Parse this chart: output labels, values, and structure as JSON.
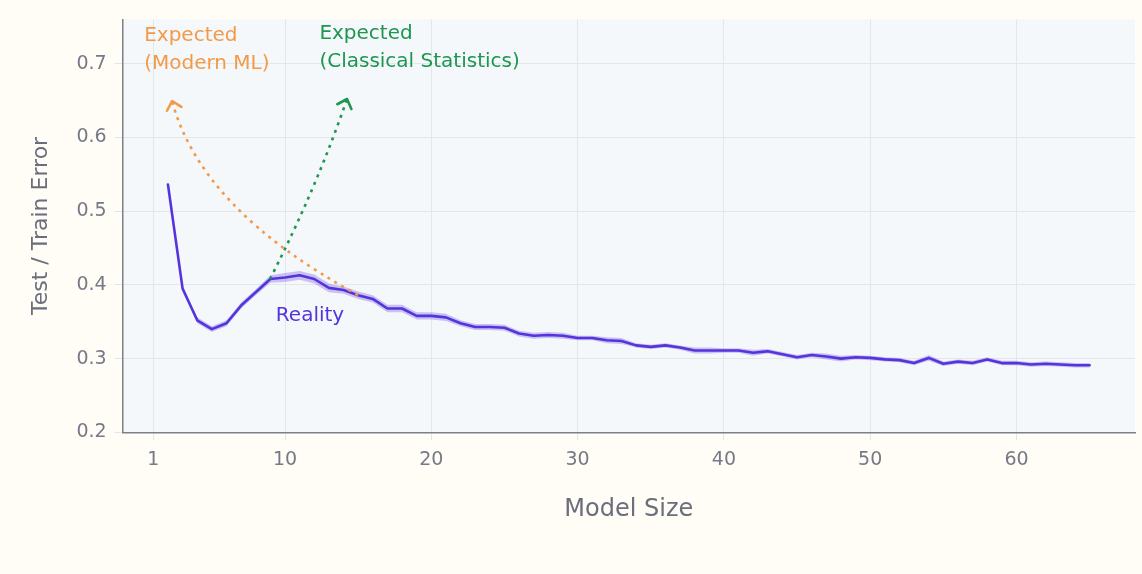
{
  "chart_data": {
    "type": "line",
    "xlabel": "Model Size",
    "ylabel": "Test / Train Error",
    "xlim": [
      -1.1,
      68.1
    ],
    "xticks": [
      1,
      10,
      20,
      30,
      40,
      50,
      60
    ],
    "ylim": [
      0.2,
      0.76
    ],
    "yticks": [
      0.2,
      0.3,
      0.4,
      0.5,
      0.6,
      0.7
    ],
    "grid": true,
    "legend": false,
    "marker": "none",
    "annotations": [
      "Expected\n(Modern ML)",
      "Expected\n(Classical Statistics)"
    ],
    "series": [
      {
        "name": "Reality",
        "color": "#5533dd",
        "line_style": "solid",
        "x": [
          2,
          3,
          4,
          5,
          6,
          7,
          8,
          9,
          10,
          11,
          12,
          13,
          14,
          15,
          16,
          17,
          18,
          19,
          20,
          21,
          22,
          23,
          24,
          25,
          26,
          27,
          28,
          29,
          30,
          31,
          32,
          33,
          34,
          35,
          36,
          37,
          38,
          39,
          40,
          41,
          42,
          43,
          44,
          45,
          46,
          47,
          48,
          49,
          50,
          51,
          52,
          53,
          54,
          55,
          56,
          57,
          58,
          59,
          60,
          61,
          62,
          63,
          64,
          65
        ],
        "values": [
          0.536,
          0.395,
          0.352,
          0.34,
          0.348,
          0.372,
          0.39,
          0.408,
          0.41,
          0.413,
          0.408,
          0.396,
          0.393,
          0.386,
          0.381,
          0.368,
          0.368,
          0.358,
          0.358,
          0.356,
          0.348,
          0.343,
          0.343,
          0.342,
          0.334,
          0.331,
          0.332,
          0.331,
          0.328,
          0.328,
          0.325,
          0.324,
          0.318,
          0.316,
          0.318,
          0.315,
          0.311,
          0.311,
          0.311,
          0.311,
          0.308,
          0.31,
          0.306,
          0.302,
          0.305,
          0.303,
          0.3,
          0.302,
          0.301,
          0.299,
          0.298,
          0.294,
          0.301,
          0.293,
          0.296,
          0.294,
          0.299,
          0.294,
          0.294,
          0.292,
          0.293,
          0.292,
          0.291,
          0.291
        ],
        "lower": [
          0.536,
          0.395,
          0.348,
          0.336,
          0.344,
          0.368,
          0.386,
          0.403,
          0.404,
          0.407,
          0.402,
          0.39,
          0.388,
          0.381,
          0.376,
          0.363,
          0.363,
          0.353,
          0.353,
          0.351,
          0.344,
          0.339,
          0.339,
          0.338,
          0.33,
          0.327,
          0.328,
          0.327,
          0.325,
          0.325,
          0.321,
          0.32,
          0.315,
          0.313,
          0.315,
          0.312,
          0.307,
          0.307,
          0.308,
          0.308,
          0.304,
          0.307,
          0.303,
          0.299,
          0.302,
          0.299,
          0.296,
          0.299,
          0.298,
          0.296,
          0.295,
          0.291,
          0.297,
          0.29,
          0.293,
          0.291,
          0.296,
          0.291,
          0.291,
          0.289,
          0.29,
          0.289,
          0.288,
          0.288
        ],
        "upper": [
          0.536,
          0.395,
          0.356,
          0.344,
          0.352,
          0.376,
          0.394,
          0.413,
          0.416,
          0.419,
          0.414,
          0.402,
          0.398,
          0.391,
          0.386,
          0.373,
          0.373,
          0.363,
          0.363,
          0.361,
          0.352,
          0.347,
          0.347,
          0.346,
          0.338,
          0.335,
          0.336,
          0.335,
          0.331,
          0.331,
          0.329,
          0.328,
          0.321,
          0.319,
          0.321,
          0.318,
          0.315,
          0.315,
          0.314,
          0.314,
          0.312,
          0.313,
          0.309,
          0.305,
          0.308,
          0.307,
          0.304,
          0.305,
          0.304,
          0.302,
          0.301,
          0.297,
          0.305,
          0.296,
          0.299,
          0.297,
          0.302,
          0.297,
          0.297,
          0.295,
          0.296,
          0.295,
          0.294,
          0.294
        ]
      }
    ]
  }
}
